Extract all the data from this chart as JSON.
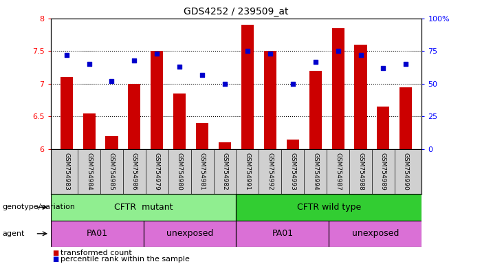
{
  "title": "GDS4252 / 239509_at",
  "samples": [
    "GSM754983",
    "GSM754984",
    "GSM754985",
    "GSM754986",
    "GSM754979",
    "GSM754980",
    "GSM754981",
    "GSM754982",
    "GSM754991",
    "GSM754992",
    "GSM754993",
    "GSM754994",
    "GSM754987",
    "GSM754988",
    "GSM754989",
    "GSM754990"
  ],
  "bar_values": [
    7.1,
    6.55,
    6.2,
    7.0,
    7.5,
    6.85,
    6.4,
    6.1,
    7.9,
    7.5,
    6.15,
    7.2,
    7.85,
    7.6,
    6.65,
    6.95
  ],
  "dot_values": [
    72,
    65,
    52,
    68,
    73,
    63,
    57,
    50,
    75,
    73,
    50,
    67,
    75,
    72,
    62,
    65
  ],
  "ylim": [
    6.0,
    8.0
  ],
  "yticks_left": [
    6.0,
    6.5,
    7.0,
    7.5,
    8.0
  ],
  "ytick_labels_left": [
    "6",
    "6.5",
    "7",
    "7.5",
    "8"
  ],
  "yticks_right": [
    0,
    25,
    50,
    75,
    100
  ],
  "ytick_labels_right": [
    "0",
    "25",
    "50",
    "75",
    "100%"
  ],
  "bar_color": "#cc0000",
  "dot_color": "#0000cc",
  "genotype_mutant_color": "#90ee90",
  "genotype_wildtype_color": "#32cd32",
  "agent_color": "#da70d6",
  "genotype_label": "genotype/variation",
  "agent_label": "agent",
  "genotype_mutant_text": "CFTR  mutant",
  "genotype_wildtype_text": "CFTR wild type",
  "agent_pa01_1_text": "PA01",
  "agent_unexposed_1_text": "unexposed",
  "agent_pa01_2_text": "PA01",
  "agent_unexposed_2_text": "unexposed",
  "legend_bar_text": "transformed count",
  "legend_dot_text": "percentile rank within the sample",
  "cftr_mutant_count": 8,
  "pa01_1_count": 4,
  "unexposed_1_count": 4,
  "pa01_2_count": 4,
  "unexposed_2_count": 4,
  "n_samples": 16
}
